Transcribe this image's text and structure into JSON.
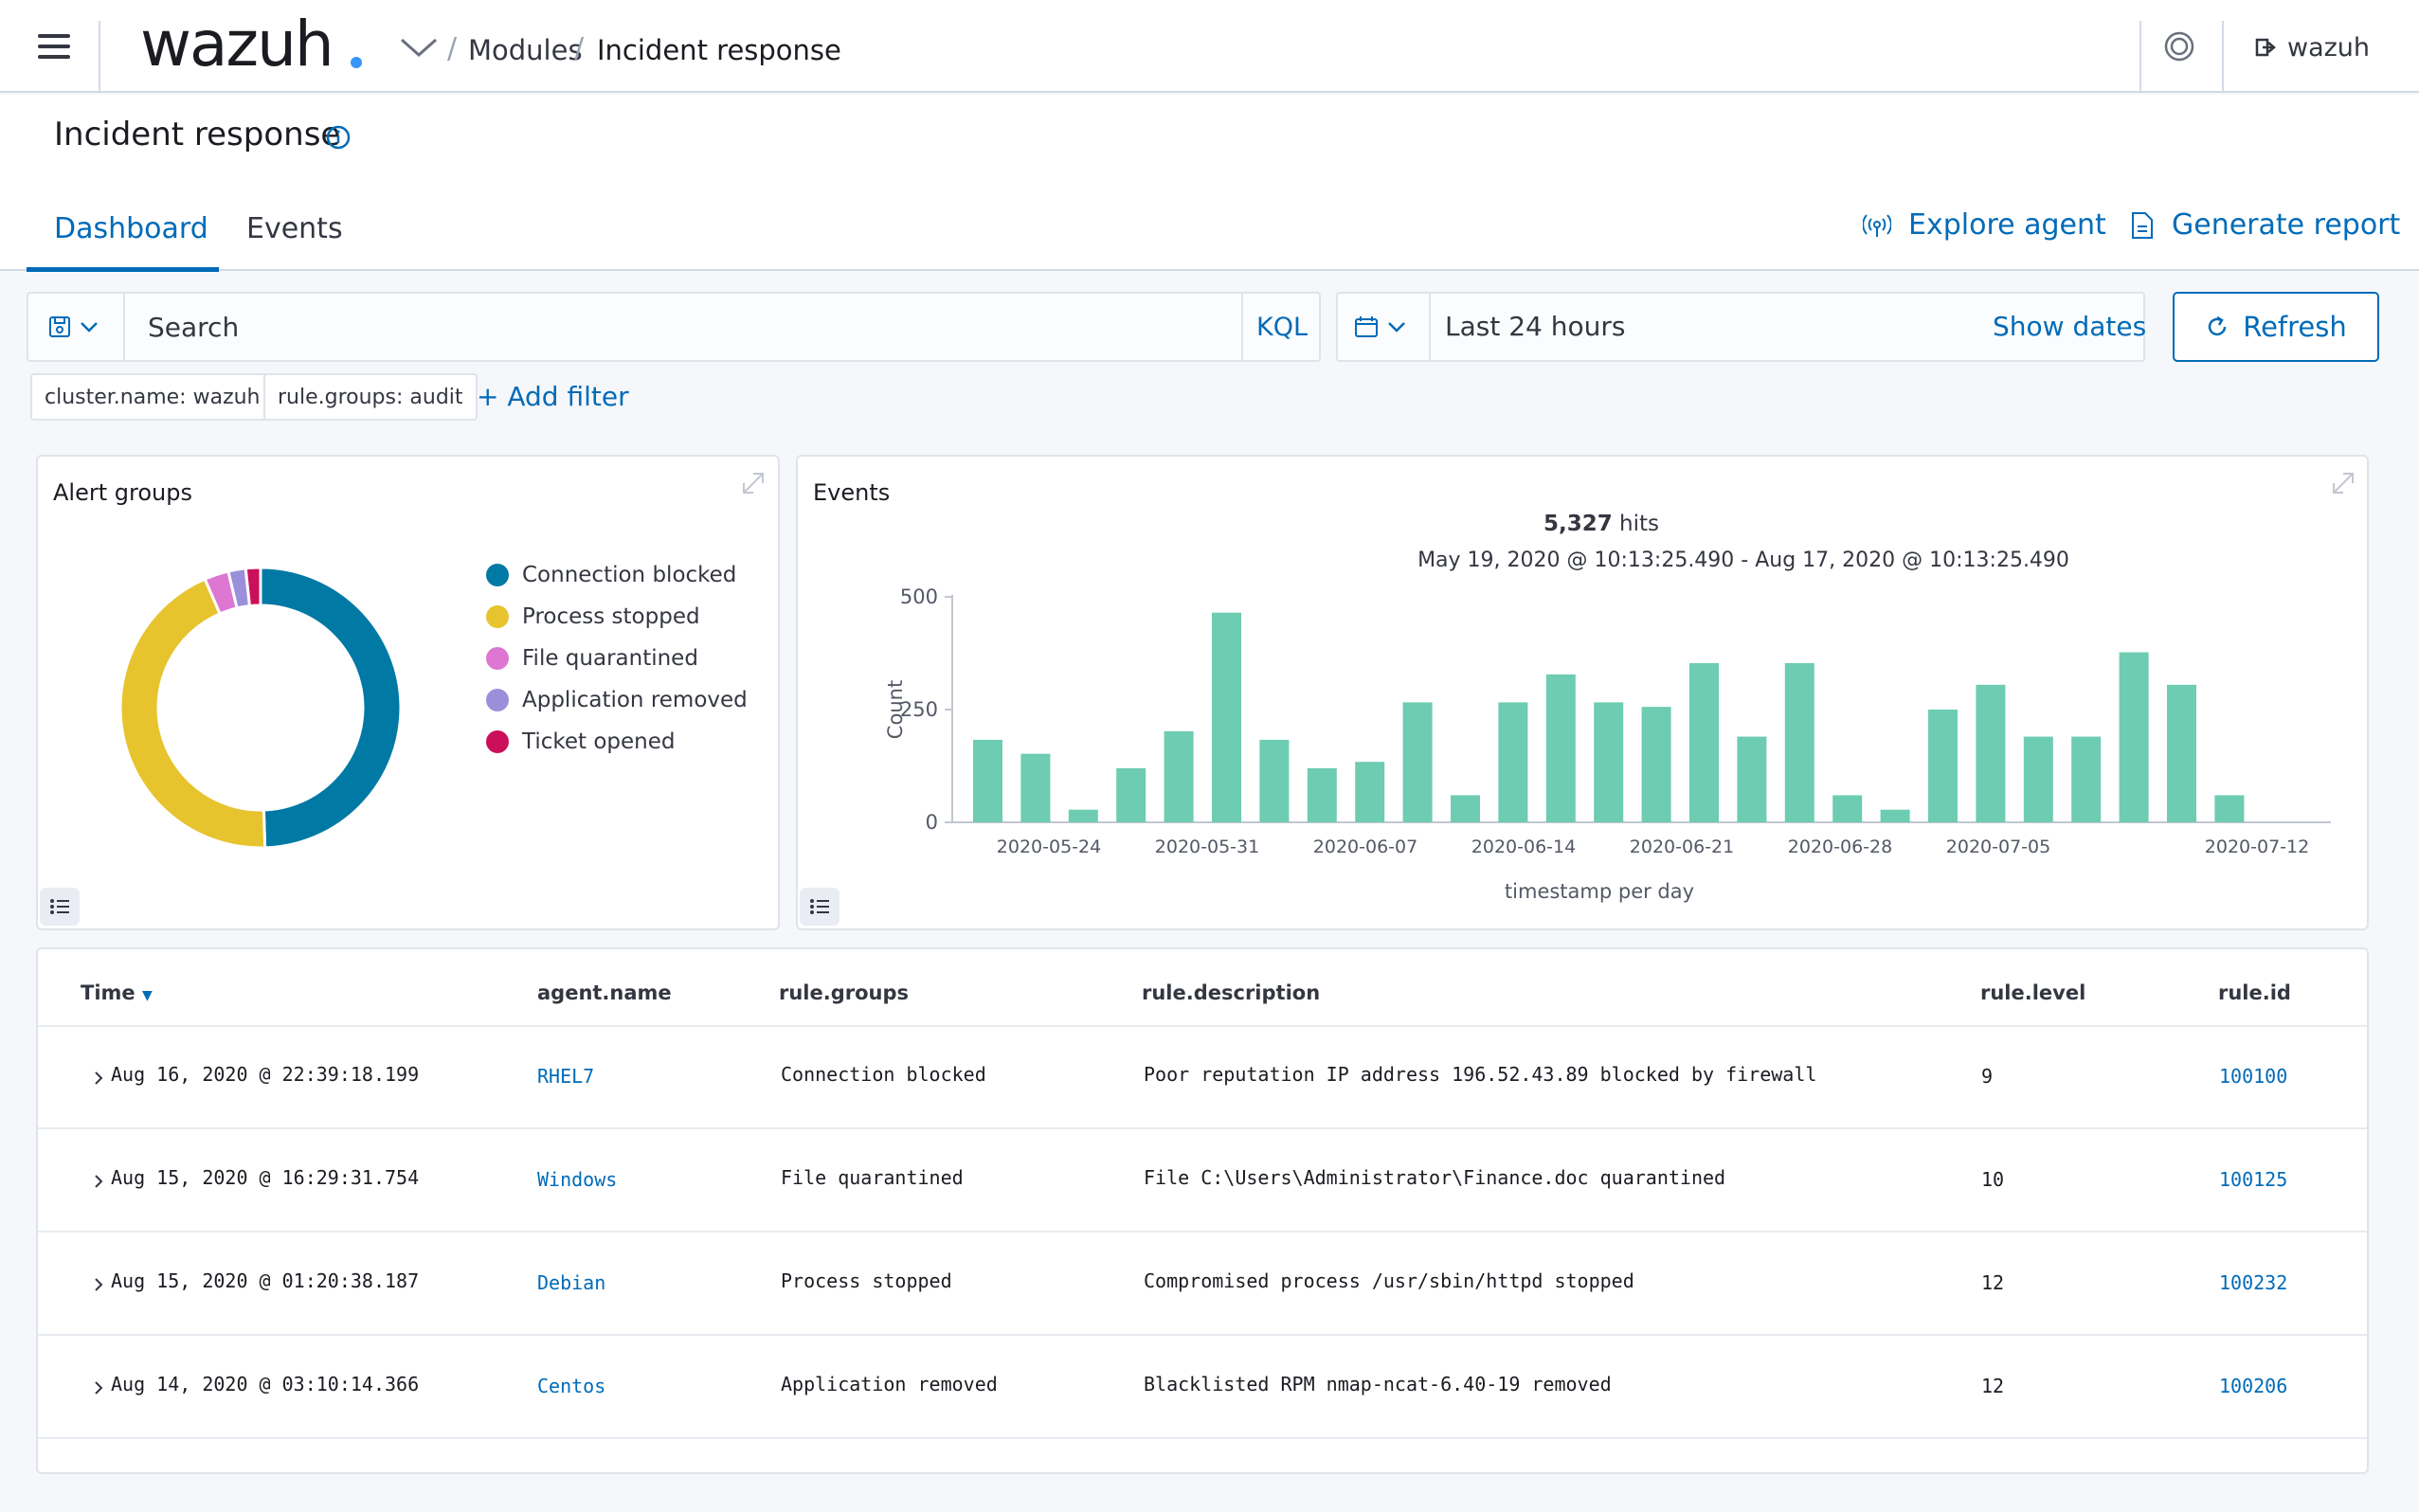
{
  "header": {
    "logo_text": "wazuh",
    "breadcrumb": {
      "module": "Modules",
      "current": "Incident response",
      "separator": "/"
    },
    "user": "wazuh"
  },
  "page": {
    "title": "Incident response",
    "tabs": [
      "Dashboard",
      "Events"
    ],
    "active_tab": "Dashboard",
    "explore_agent": "Explore agent",
    "generate_report": "Generate report"
  },
  "query": {
    "search_placeholder": "Search",
    "kql": "KQL",
    "time_range": "Last 24 hours",
    "show_dates": "Show dates",
    "refresh": "Refresh",
    "filters": [
      "cluster.name: wazuh",
      "rule.groups: audit"
    ],
    "add_filter": "+ Add filter"
  },
  "alert_groups": {
    "title": "Alert groups",
    "legend": [
      {
        "label": "Connection blocked",
        "color": "#0079a5"
      },
      {
        "label": "Process stopped",
        "color": "#e7c42e"
      },
      {
        "label": "File quarantined",
        "color": "#dd77d2"
      },
      {
        "label": "Application removed",
        "color": "#9b8fdb"
      },
      {
        "label": "Ticket opened",
        "color": "#cc0f5a"
      }
    ]
  },
  "events_panel": {
    "title": "Events",
    "hits": "5,327",
    "hits_suffix": "hits",
    "range": "May 19, 2020 @ 10:13:25.490 - Aug 17, 2020 @ 10:13:25.490"
  },
  "chart_data": [
    {
      "type": "pie",
      "title": "Alert groups",
      "labels": [
        "Connection blocked",
        "Process stopped",
        "File quarantined",
        "Application removed",
        "Ticket opened"
      ],
      "values": [
        49.5,
        44.0,
        2.8,
        2.0,
        1.7
      ],
      "colors": [
        "#0079a5",
        "#e7c42e",
        "#dd77d2",
        "#9b8fdb",
        "#cc0f5a"
      ]
    },
    {
      "type": "bar",
      "title": "Events",
      "xlabel": "timestamp per day",
      "ylabel": "Count",
      "ylim": [
        0,
        500
      ],
      "yticks": [
        0,
        250,
        500
      ],
      "xtick_labels": [
        "2020-05-24",
        "2020-05-31",
        "2020-06-07",
        "2020-06-14",
        "2020-06-21",
        "2020-06-28",
        "2020-07-05",
        "2020-07-12"
      ],
      "color": "#6dccb1",
      "values": [
        183,
        152,
        28,
        120,
        202,
        465,
        183,
        120,
        134,
        266,
        60,
        266,
        328,
        266,
        256,
        353,
        190,
        353,
        60,
        28,
        250,
        305,
        190,
        190,
        377,
        305,
        60
      ]
    }
  ],
  "table": {
    "columns": [
      "Time",
      "agent.name",
      "rule.groups",
      "rule.description",
      "rule.level",
      "rule.id"
    ],
    "rows": [
      {
        "time": "Aug 16, 2020 @ 22:39:18.199",
        "agent": "RHEL7",
        "group": "Connection blocked",
        "description": "Poor reputation IP address 196.52.43.89 blocked by firewall",
        "level": "9",
        "id": "100100"
      },
      {
        "time": "Aug 15, 2020 @ 16:29:31.754",
        "agent": "Windows",
        "group": "File quarantined",
        "description": "File C:\\Users\\Administrator\\Finance.doc quarantined",
        "level": "10",
        "id": "100125"
      },
      {
        "time": "Aug 15, 2020 @ 01:20:38.187",
        "agent": "Debian",
        "group": "Process stopped",
        "description": "Compromised process /usr/sbin/httpd stopped",
        "level": "12",
        "id": "100232"
      },
      {
        "time": "Aug 14, 2020 @ 03:10:14.366",
        "agent": "Centos",
        "group": "Application removed",
        "description": "Blacklisted RPM nmap-ncat-6.40-19 removed",
        "level": "12",
        "id": "100206"
      }
    ]
  }
}
